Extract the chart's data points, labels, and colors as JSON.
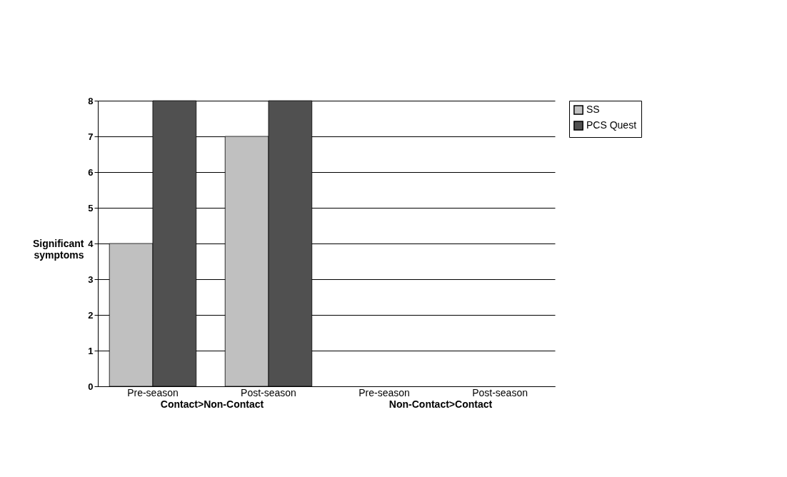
{
  "chart_data": {
    "type": "bar",
    "categories": [
      "Pre-season",
      "Post-season",
      "Pre-season",
      "Post-season"
    ],
    "series": [
      {
        "name": "SS",
        "color": "#c0c0c0",
        "values": [
          4,
          7,
          0,
          0
        ]
      },
      {
        "name": "PCS Quest",
        "color": "#505050",
        "values": [
          8,
          8,
          0,
          0
        ]
      }
    ],
    "ylabel": "Significant symptoms",
    "ylim": [
      0,
      8
    ],
    "yticks": [
      0,
      1,
      2,
      3,
      4,
      5,
      6,
      7,
      8
    ],
    "grid": "y",
    "legend": "right",
    "annotations": [
      "Contact>Non-Contact",
      "Non-Contact>Contact"
    ]
  }
}
